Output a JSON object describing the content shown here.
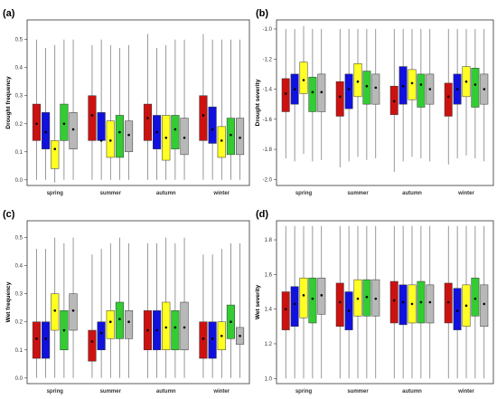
{
  "figure": {
    "background": "#ffffff",
    "series_colors": [
      "#cc1111",
      "#1111dd",
      "#ffff22",
      "#33cc33",
      "#b8b8b8"
    ],
    "frame_color": "#333333"
  },
  "chart_data": [
    {
      "label": "(a)",
      "type": "box",
      "ylabel": "Drought frequency",
      "ylim": [
        -0.02,
        0.57
      ],
      "yticks": [
        0.0,
        0.1,
        0.2,
        0.3,
        0.4,
        0.5
      ],
      "ytick_labels": [
        "0.0",
        "0.1",
        "0.2",
        "0.3",
        "0.4",
        "0.5"
      ],
      "categories": [
        "spring",
        "summer",
        "autumn",
        "winter"
      ],
      "groups": [
        [
          {
            "whislo": 0.0,
            "q1": 0.14,
            "q3": 0.27,
            "whishi": 0.5,
            "mean": 0.2
          },
          {
            "whislo": 0.0,
            "q1": 0.11,
            "q3": 0.24,
            "whishi": 0.47,
            "mean": 0.17
          },
          {
            "whislo": -0.01,
            "q1": 0.04,
            "q3": 0.14,
            "whishi": 0.48,
            "mean": 0.11
          },
          {
            "whislo": 0.0,
            "q1": 0.14,
            "q3": 0.27,
            "whishi": 0.5,
            "mean": 0.2
          },
          {
            "whislo": 0.0,
            "q1": 0.11,
            "q3": 0.24,
            "whishi": 0.5,
            "mean": 0.18
          }
        ],
        [
          {
            "whislo": 0.0,
            "q1": 0.14,
            "q3": 0.3,
            "whishi": 0.48,
            "mean": 0.23
          },
          {
            "whislo": 0.0,
            "q1": 0.14,
            "q3": 0.24,
            "whishi": 0.5,
            "mean": 0.14
          },
          {
            "whislo": 0.0,
            "q1": 0.08,
            "q3": 0.21,
            "whishi": 0.48,
            "mean": 0.14
          },
          {
            "whislo": 0.0,
            "q1": 0.08,
            "q3": 0.23,
            "whishi": 0.47,
            "mean": 0.17
          },
          {
            "whislo": 0.0,
            "q1": 0.1,
            "q3": 0.21,
            "whishi": 0.48,
            "mean": 0.16
          }
        ],
        [
          {
            "whislo": 0.0,
            "q1": 0.14,
            "q3": 0.27,
            "whishi": 0.52,
            "mean": 0.22
          },
          {
            "whislo": 0.0,
            "q1": 0.11,
            "q3": 0.23,
            "whishi": 0.47,
            "mean": 0.17
          },
          {
            "whislo": 0.0,
            "q1": 0.07,
            "q3": 0.23,
            "whishi": 0.48,
            "mean": 0.15
          },
          {
            "whislo": 0.0,
            "q1": 0.11,
            "q3": 0.23,
            "whishi": 0.5,
            "mean": 0.18
          },
          {
            "whislo": 0.0,
            "q1": 0.09,
            "q3": 0.22,
            "whishi": 0.5,
            "mean": 0.15
          }
        ],
        [
          {
            "whislo": 0.0,
            "q1": 0.14,
            "q3": 0.3,
            "whishi": 0.52,
            "mean": 0.23
          },
          {
            "whislo": 0.0,
            "q1": 0.13,
            "q3": 0.26,
            "whishi": 0.5,
            "mean": 0.18
          },
          {
            "whislo": 0.0,
            "q1": 0.08,
            "q3": 0.19,
            "whishi": 0.5,
            "mean": 0.14
          },
          {
            "whislo": 0.0,
            "q1": 0.09,
            "q3": 0.22,
            "whishi": 0.5,
            "mean": 0.16
          },
          {
            "whislo": 0.0,
            "q1": 0.09,
            "q3": 0.22,
            "whishi": 0.5,
            "mean": 0.15
          }
        ]
      ]
    },
    {
      "label": "(b)",
      "type": "box",
      "ylabel": "Drought severity",
      "ylim": [
        -2.04,
        -0.94
      ],
      "yticks": [
        -2.0,
        -1.8,
        -1.6,
        -1.4,
        -1.2,
        -1.0
      ],
      "ytick_labels": [
        "-2.0",
        "-1.8",
        "-1.6",
        "-1.4",
        "-1.2",
        "-1.0"
      ],
      "categories": [
        "spring",
        "summer",
        "autumn",
        "winter"
      ],
      "groups": [
        [
          {
            "whislo": -1.86,
            "q1": -1.55,
            "q3": -1.33,
            "whishi": -1.0,
            "mean": -1.43
          },
          {
            "whislo": -1.88,
            "q1": -1.5,
            "q3": -1.3,
            "whishi": -1.0,
            "mean": -1.4
          },
          {
            "whislo": -1.83,
            "q1": -1.43,
            "q3": -1.22,
            "whishi": -0.98,
            "mean": -1.34
          },
          {
            "whislo": -1.88,
            "q1": -1.55,
            "q3": -1.32,
            "whishi": -1.0,
            "mean": -1.42
          },
          {
            "whislo": -1.87,
            "q1": -1.55,
            "q3": -1.3,
            "whishi": -1.0,
            "mean": -1.42
          }
        ],
        [
          {
            "whislo": -1.92,
            "q1": -1.58,
            "q3": -1.35,
            "whishi": -1.0,
            "mean": -1.45
          },
          {
            "whislo": -1.88,
            "q1": -1.53,
            "q3": -1.3,
            "whishi": -1.0,
            "mean": -1.4
          },
          {
            "whislo": -1.85,
            "q1": -1.45,
            "q3": -1.23,
            "whishi": -1.0,
            "mean": -1.35
          },
          {
            "whislo": -1.87,
            "q1": -1.5,
            "q3": -1.28,
            "whishi": -1.0,
            "mean": -1.38
          },
          {
            "whislo": -1.86,
            "q1": -1.5,
            "q3": -1.3,
            "whishi": -1.0,
            "mean": -1.39
          }
        ],
        [
          {
            "whislo": -1.95,
            "q1": -1.57,
            "q3": -1.38,
            "whishi": -1.0,
            "mean": -1.48
          },
          {
            "whislo": -1.88,
            "q1": -1.5,
            "q3": -1.25,
            "whishi": -1.0,
            "mean": -1.38
          },
          {
            "whislo": -1.85,
            "q1": -1.47,
            "q3": -1.27,
            "whishi": -1.0,
            "mean": -1.36
          },
          {
            "whislo": -1.86,
            "q1": -1.52,
            "q3": -1.3,
            "whishi": -1.0,
            "mean": -1.37
          },
          {
            "whislo": -1.88,
            "q1": -1.5,
            "q3": -1.3,
            "whishi": -1.0,
            "mean": -1.4
          }
        ],
        [
          {
            "whislo": -1.9,
            "q1": -1.58,
            "q3": -1.36,
            "whishi": -1.0,
            "mean": -1.45
          },
          {
            "whislo": -1.86,
            "q1": -1.5,
            "q3": -1.3,
            "whishi": -1.0,
            "mean": -1.4
          },
          {
            "whislo": -1.84,
            "q1": -1.45,
            "q3": -1.25,
            "whishi": -1.0,
            "mean": -1.35
          },
          {
            "whislo": -1.86,
            "q1": -1.52,
            "q3": -1.26,
            "whishi": -1.0,
            "mean": -1.37
          },
          {
            "whislo": -1.88,
            "q1": -1.5,
            "q3": -1.3,
            "whishi": -1.0,
            "mean": -1.4
          }
        ]
      ]
    },
    {
      "label": "(c)",
      "type": "box",
      "ylabel": "Wet frequency",
      "ylim": [
        -0.02,
        0.56
      ],
      "yticks": [
        0.0,
        0.1,
        0.2,
        0.3,
        0.4,
        0.5
      ],
      "ytick_labels": [
        "0.0",
        "0.1",
        "0.2",
        "0.3",
        "0.4",
        "0.5"
      ],
      "categories": [
        "spring",
        "summer",
        "autumn",
        "winter"
      ],
      "groups": [
        [
          {
            "whislo": 0.0,
            "q1": 0.07,
            "q3": 0.2,
            "whishi": 0.46,
            "mean": 0.14
          },
          {
            "whislo": 0.0,
            "q1": 0.07,
            "q3": 0.2,
            "whishi": 0.46,
            "mean": 0.14
          },
          {
            "whislo": 0.0,
            "q1": 0.17,
            "q3": 0.3,
            "whishi": 0.5,
            "mean": 0.24
          },
          {
            "whislo": 0.0,
            "q1": 0.1,
            "q3": 0.24,
            "whishi": 0.48,
            "mean": 0.17
          },
          {
            "whislo": 0.0,
            "q1": 0.17,
            "q3": 0.3,
            "whishi": 0.5,
            "mean": 0.24
          }
        ],
        [
          {
            "whislo": 0.0,
            "q1": 0.06,
            "q3": 0.17,
            "whishi": 0.44,
            "mean": 0.13
          },
          {
            "whislo": 0.0,
            "q1": 0.1,
            "q3": 0.2,
            "whishi": 0.46,
            "mean": 0.16
          },
          {
            "whislo": 0.0,
            "q1": 0.14,
            "q3": 0.24,
            "whishi": 0.48,
            "mean": 0.2
          },
          {
            "whislo": 0.0,
            "q1": 0.14,
            "q3": 0.27,
            "whishi": 0.5,
            "mean": 0.21
          },
          {
            "whislo": 0.0,
            "q1": 0.14,
            "q3": 0.24,
            "whishi": 0.48,
            "mean": 0.2
          }
        ],
        [
          {
            "whislo": 0.0,
            "q1": 0.1,
            "q3": 0.24,
            "whishi": 0.48,
            "mean": 0.17
          },
          {
            "whislo": 0.0,
            "q1": 0.1,
            "q3": 0.24,
            "whishi": 0.48,
            "mean": 0.17
          },
          {
            "whislo": 0.0,
            "q1": 0.1,
            "q3": 0.27,
            "whishi": 0.5,
            "mean": 0.18
          },
          {
            "whislo": 0.0,
            "q1": 0.1,
            "q3": 0.24,
            "whishi": 0.48,
            "mean": 0.18
          },
          {
            "whislo": 0.0,
            "q1": 0.1,
            "q3": 0.27,
            "whishi": 0.5,
            "mean": 0.18
          }
        ],
        [
          {
            "whislo": 0.0,
            "q1": 0.07,
            "q3": 0.2,
            "whishi": 0.44,
            "mean": 0.14
          },
          {
            "whislo": 0.0,
            "q1": 0.07,
            "q3": 0.2,
            "whishi": 0.44,
            "mean": 0.14
          },
          {
            "whislo": 0.0,
            "q1": 0.1,
            "q3": 0.2,
            "whishi": 0.46,
            "mean": 0.15
          },
          {
            "whislo": 0.0,
            "q1": 0.14,
            "q3": 0.26,
            "whishi": 0.48,
            "mean": 0.2
          },
          {
            "whislo": 0.0,
            "q1": 0.12,
            "q3": 0.18,
            "whishi": 0.48,
            "mean": 0.15
          }
        ]
      ]
    },
    {
      "label": "(d)",
      "type": "box",
      "ylabel": "Wet severity",
      "ylim": [
        0.97,
        1.91
      ],
      "yticks": [
        1.0,
        1.2,
        1.4,
        1.6,
        1.8
      ],
      "ytick_labels": [
        "1.0",
        "1.2",
        "1.4",
        "1.6",
        "1.8"
      ],
      "categories": [
        "spring",
        "summer",
        "autumn",
        "winter"
      ],
      "groups": [
        [
          {
            "whislo": 1.0,
            "q1": 1.28,
            "q3": 1.5,
            "whishi": 1.88,
            "mean": 1.4
          },
          {
            "whislo": 1.0,
            "q1": 1.3,
            "q3": 1.53,
            "whishi": 1.88,
            "mean": 1.43
          },
          {
            "whislo": 1.0,
            "q1": 1.35,
            "q3": 1.58,
            "whishi": 1.88,
            "mean": 1.48
          },
          {
            "whislo": 1.0,
            "q1": 1.32,
            "q3": 1.58,
            "whishi": 1.88,
            "mean": 1.46
          },
          {
            "whislo": 1.0,
            "q1": 1.37,
            "q3": 1.58,
            "whishi": 1.88,
            "mean": 1.48
          }
        ],
        [
          {
            "whislo": 1.0,
            "q1": 1.3,
            "q3": 1.55,
            "whishi": 1.88,
            "mean": 1.44
          },
          {
            "whislo": 1.0,
            "q1": 1.28,
            "q3": 1.5,
            "whishi": 1.88,
            "mean": 1.39
          },
          {
            "whislo": 1.0,
            "q1": 1.36,
            "q3": 1.57,
            "whishi": 1.88,
            "mean": 1.46
          },
          {
            "whislo": 1.0,
            "q1": 1.36,
            "q3": 1.57,
            "whishi": 1.88,
            "mean": 1.47
          },
          {
            "whislo": 1.0,
            "q1": 1.36,
            "q3": 1.57,
            "whishi": 1.88,
            "mean": 1.46
          }
        ],
        [
          {
            "whislo": 1.0,
            "q1": 1.32,
            "q3": 1.56,
            "whishi": 1.88,
            "mean": 1.45
          },
          {
            "whislo": 1.0,
            "q1": 1.31,
            "q3": 1.54,
            "whishi": 1.88,
            "mean": 1.44
          },
          {
            "whislo": 1.0,
            "q1": 1.32,
            "q3": 1.54,
            "whishi": 1.88,
            "mean": 1.43
          },
          {
            "whislo": 1.0,
            "q1": 1.32,
            "q3": 1.56,
            "whishi": 1.88,
            "mean": 1.44
          },
          {
            "whislo": 1.0,
            "q1": 1.32,
            "q3": 1.54,
            "whishi": 1.88,
            "mean": 1.44
          }
        ],
        [
          {
            "whislo": 1.0,
            "q1": 1.32,
            "q3": 1.55,
            "whishi": 1.88,
            "mean": 1.44
          },
          {
            "whislo": 1.0,
            "q1": 1.28,
            "q3": 1.52,
            "whishi": 1.88,
            "mean": 1.39
          },
          {
            "whislo": 1.0,
            "q1": 1.3,
            "q3": 1.54,
            "whishi": 1.88,
            "mean": 1.42
          },
          {
            "whislo": 1.0,
            "q1": 1.36,
            "q3": 1.58,
            "whishi": 1.88,
            "mean": 1.46
          },
          {
            "whislo": 1.0,
            "q1": 1.3,
            "q3": 1.54,
            "whishi": 1.88,
            "mean": 1.43
          }
        ]
      ]
    }
  ]
}
